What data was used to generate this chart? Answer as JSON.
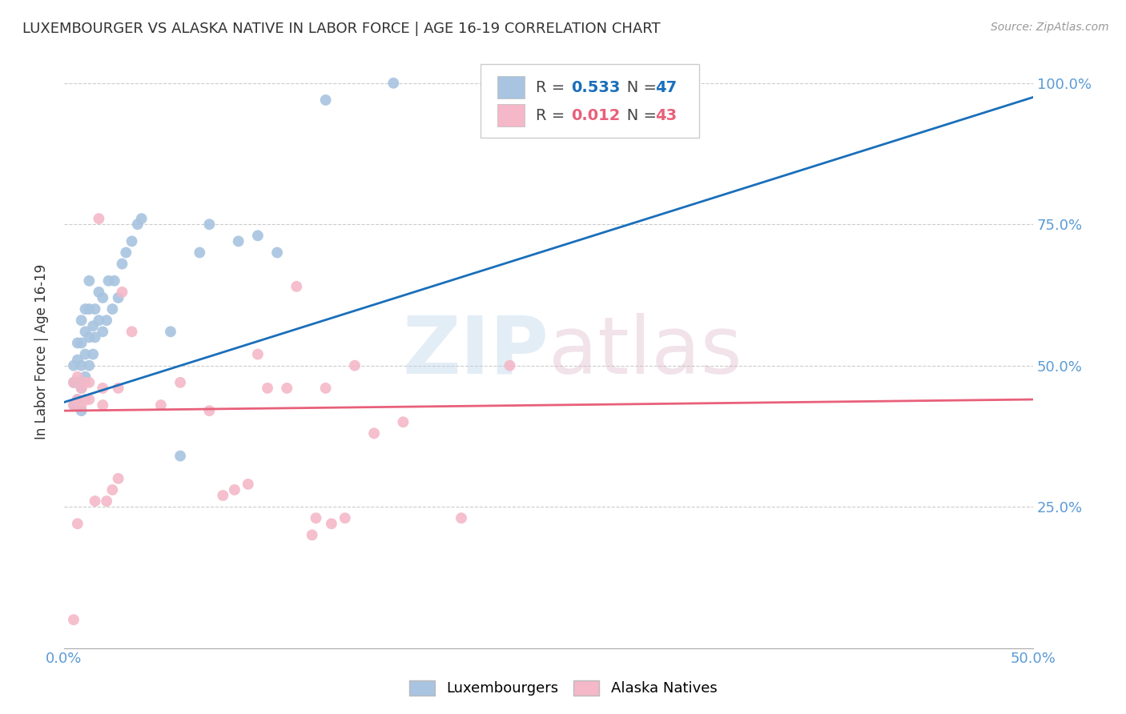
{
  "title": "LUXEMBOURGER VS ALASKA NATIVE IN LABOR FORCE | AGE 16-19 CORRELATION CHART",
  "source": "Source: ZipAtlas.com",
  "ylabel": "In Labor Force | Age 16-19",
  "xlim": [
    0.0,
    0.5
  ],
  "ylim": [
    0.0,
    1.05
  ],
  "xticks": [
    0.0,
    0.05,
    0.1,
    0.15,
    0.2,
    0.25,
    0.3,
    0.35,
    0.4,
    0.45,
    0.5
  ],
  "yticks": [
    0.0,
    0.25,
    0.5,
    0.75,
    1.0
  ],
  "blue_R": 0.533,
  "blue_N": 47,
  "pink_R": 0.012,
  "pink_N": 43,
  "blue_color": "#a8c4e0",
  "pink_color": "#f4b8c8",
  "blue_line_color": "#1a6fba",
  "pink_line_color": "#e8607a",
  "watermark_zip": "ZIP",
  "watermark_atlas": "atlas",
  "blue_scatter_x": [
    0.005,
    0.005,
    0.005,
    0.007,
    0.007,
    0.007,
    0.007,
    0.009,
    0.009,
    0.009,
    0.009,
    0.009,
    0.011,
    0.011,
    0.011,
    0.011,
    0.013,
    0.013,
    0.013,
    0.013,
    0.015,
    0.015,
    0.016,
    0.016,
    0.018,
    0.018,
    0.02,
    0.02,
    0.022,
    0.023,
    0.025,
    0.026,
    0.028,
    0.03,
    0.032,
    0.035,
    0.038,
    0.04,
    0.055,
    0.06,
    0.07,
    0.075,
    0.09,
    0.1,
    0.11,
    0.135,
    0.17
  ],
  "blue_scatter_y": [
    0.43,
    0.47,
    0.5,
    0.44,
    0.47,
    0.51,
    0.54,
    0.42,
    0.46,
    0.5,
    0.54,
    0.58,
    0.48,
    0.52,
    0.56,
    0.6,
    0.5,
    0.55,
    0.6,
    0.65,
    0.52,
    0.57,
    0.55,
    0.6,
    0.58,
    0.63,
    0.56,
    0.62,
    0.58,
    0.65,
    0.6,
    0.65,
    0.62,
    0.68,
    0.7,
    0.72,
    0.75,
    0.76,
    0.56,
    0.34,
    0.7,
    0.75,
    0.72,
    0.73,
    0.7,
    0.97,
    1.0
  ],
  "pink_scatter_x": [
    0.005,
    0.005,
    0.005,
    0.007,
    0.007,
    0.007,
    0.009,
    0.009,
    0.011,
    0.011,
    0.013,
    0.013,
    0.016,
    0.018,
    0.02,
    0.02,
    0.022,
    0.025,
    0.028,
    0.028,
    0.03,
    0.035,
    0.05,
    0.06,
    0.075,
    0.082,
    0.088,
    0.095,
    0.1,
    0.105,
    0.115,
    0.12,
    0.128,
    0.13,
    0.135,
    0.138,
    0.145,
    0.15,
    0.16,
    0.175,
    0.205,
    0.23,
    0.245
  ],
  "pink_scatter_y": [
    0.05,
    0.43,
    0.47,
    0.22,
    0.44,
    0.48,
    0.43,
    0.46,
    0.44,
    0.47,
    0.44,
    0.47,
    0.26,
    0.76,
    0.43,
    0.46,
    0.26,
    0.28,
    0.3,
    0.46,
    0.63,
    0.56,
    0.43,
    0.47,
    0.42,
    0.27,
    0.28,
    0.29,
    0.52,
    0.46,
    0.46,
    0.64,
    0.2,
    0.23,
    0.46,
    0.22,
    0.23,
    0.5,
    0.38,
    0.4,
    0.23,
    0.5,
    1.0
  ],
  "blue_line_x0": 0.0,
  "blue_line_y0": 0.435,
  "blue_line_x1": 0.5,
  "blue_line_y1": 0.975,
  "pink_line_x0": 0.0,
  "pink_line_y0": 0.42,
  "pink_line_x1": 0.5,
  "pink_line_y1": 0.44
}
